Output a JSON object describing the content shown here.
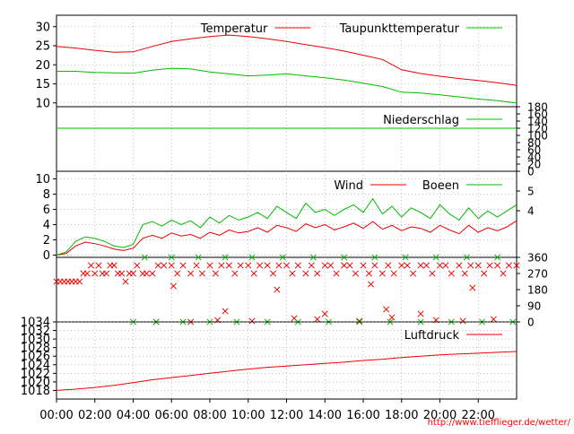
{
  "url_credit": "http://www.tiefflieger.de/wetter/",
  "colors": {
    "red": "#ee0000",
    "green": "#00bb00",
    "grid": "#9a9a9a"
  },
  "x_axis": {
    "ticks": [
      "00:00",
      "02:00",
      "04:00",
      "06:00",
      "08:00",
      "10:00",
      "12:00",
      "14:00",
      "16:00",
      "18:00",
      "20:00",
      "22:00"
    ]
  },
  "chart_data": [
    {
      "type": "line",
      "panel": "temperature",
      "x_unit": "hours",
      "xlim": [
        0,
        24
      ],
      "ylim": [
        9,
        33
      ],
      "y_ticks": [
        "10",
        "15",
        "20",
        "25",
        "30"
      ],
      "legend_position": "top-right",
      "series": [
        {
          "name": "Temperatur",
          "color": "#ee0000",
          "x": [
            0,
            1,
            2,
            3,
            4,
            5,
            6,
            7,
            8,
            9,
            10,
            11,
            12,
            13,
            14,
            15,
            16,
            17,
            18,
            19,
            20,
            21,
            22,
            23,
            24
          ],
          "values": [
            24.8,
            24.4,
            23.8,
            23.3,
            23.4,
            24.8,
            26.1,
            26.8,
            27.4,
            27.8,
            27.4,
            26.8,
            26.1,
            25.3,
            24.5,
            23.6,
            22.5,
            21.4,
            18.7,
            17.7,
            17.0,
            16.4,
            15.9,
            15.3,
            14.6
          ]
        },
        {
          "name": "Taupunkttemperatur",
          "color": "#00bb00",
          "x": [
            0,
            1,
            2,
            3,
            4,
            5,
            6,
            7,
            8,
            9,
            10,
            11,
            12,
            13,
            14,
            15,
            16,
            17,
            18,
            19,
            20,
            21,
            22,
            23,
            24
          ],
          "values": [
            18.3,
            18.3,
            18.0,
            17.9,
            17.8,
            18.6,
            19.1,
            18.9,
            18.1,
            17.6,
            17.1,
            17.3,
            17.6,
            17.1,
            16.6,
            16.0,
            15.2,
            14.3,
            12.8,
            12.6,
            12.1,
            11.6,
            11.0,
            10.6,
            10.0
          ]
        }
      ]
    },
    {
      "type": "line",
      "panel": "precipitation",
      "x_unit": "hours",
      "xlim": [
        0,
        24
      ],
      "ylim": [
        0,
        180
      ],
      "y_ticks_right": [
        "0",
        "20",
        "40",
        "60",
        "80",
        "100",
        "120",
        "140",
        "160",
        "180"
      ],
      "legend_position": "top-right",
      "series": [
        {
          "name": "Niederschlag",
          "color": "#00bb00",
          "x": [
            0,
            24
          ],
          "values": [
            120,
            120
          ]
        }
      ]
    },
    {
      "type": "line",
      "panel": "wind",
      "x_unit": "hours",
      "xlim": [
        0,
        24
      ],
      "ylim": [
        -0.3,
        11
      ],
      "y_ticks": [
        "0",
        "2",
        "4",
        "6",
        "8",
        "10"
      ],
      "y_ticks_right": [
        "4",
        "5"
      ],
      "legend_position": "top-right",
      "series": [
        {
          "name": "Wind",
          "color": "#ee0000",
          "x": [
            0,
            0.5,
            1,
            1.5,
            2,
            2.5,
            3,
            3.5,
            4,
            4.5,
            5,
            5.5,
            6,
            6.5,
            7,
            7.5,
            8,
            8.5,
            9,
            9.5,
            10,
            10.5,
            11,
            11.5,
            12,
            12.5,
            13,
            13.5,
            14,
            14.5,
            15,
            15.5,
            16,
            16.5,
            17,
            17.5,
            18,
            18.5,
            19,
            19.5,
            20,
            20.5,
            21,
            21.5,
            22,
            22.5,
            23,
            23.5,
            24
          ],
          "values": [
            0,
            0.2,
            1.2,
            1.7,
            1.5,
            1.2,
            0.8,
            0.6,
            0.9,
            2.2,
            2.6,
            2.2,
            2.9,
            2.5,
            2.7,
            2.2,
            3.0,
            2.6,
            3.3,
            2.9,
            3.1,
            3.6,
            3.0,
            3.9,
            3.6,
            3.1,
            4.1,
            3.6,
            4.0,
            3.3,
            3.7,
            4.2,
            3.5,
            4.4,
            3.4,
            3.9,
            3.2,
            3.7,
            3.5,
            3.0,
            3.9,
            3.3,
            2.8,
            3.9,
            3.0,
            3.6,
            3.2,
            3.7,
            4.5
          ]
        },
        {
          "name": "Boeen",
          "color": "#00bb00",
          "x": [
            0,
            0.5,
            1,
            1.5,
            2,
            2.5,
            3,
            3.5,
            4,
            4.5,
            5,
            5.5,
            6,
            6.5,
            7,
            7.5,
            8,
            8.5,
            9,
            9.5,
            10,
            10.5,
            11,
            11.5,
            12,
            12.5,
            13,
            13.5,
            14,
            14.5,
            15,
            15.5,
            16,
            16.5,
            17,
            17.5,
            18,
            18.5,
            19,
            19.5,
            20,
            20.5,
            21,
            21.5,
            22,
            22.5,
            23,
            23.5,
            24
          ],
          "values": [
            0,
            0.4,
            1.8,
            2.4,
            2.2,
            1.8,
            1.2,
            1.0,
            1.4,
            4.0,
            4.4,
            3.8,
            4.6,
            4.0,
            4.5,
            3.6,
            5.0,
            4.2,
            5.2,
            4.6,
            5.0,
            5.6,
            4.8,
            6.4,
            5.6,
            4.8,
            6.8,
            5.6,
            6.0,
            5.2,
            6.0,
            6.6,
            5.6,
            7.4,
            5.4,
            6.4,
            5.0,
            6.2,
            5.6,
            4.8,
            6.6,
            5.4,
            4.6,
            6.2,
            4.8,
            5.8,
            5.0,
            5.8,
            6.6
          ]
        }
      ]
    },
    {
      "type": "scatter",
      "panel": "wind_direction",
      "x_unit": "hours",
      "xlim": [
        0,
        24
      ],
      "ylim": [
        0,
        360
      ],
      "y_ticks_right": [
        "0",
        "90",
        "180",
        "270",
        "360"
      ],
      "series": [
        {
          "name": "",
          "color": "#ee0000",
          "marker": "x",
          "x": [
            0,
            0.2,
            0.4,
            0.6,
            0.8,
            1.0,
            1.2,
            1.4,
            1.6,
            1.8,
            2.0,
            2.2,
            2.4,
            2.6,
            2.8,
            3.0,
            3.2,
            3.4,
            3.6,
            3.8,
            4.0,
            4.2,
            4.5,
            4.7,
            5.0,
            5.3,
            5.6,
            6.0,
            6.3,
            6.6,
            7.0,
            7.3,
            7.6,
            8.0,
            8.3,
            8.6,
            9.0,
            9.3,
            9.6,
            10.0,
            10.3,
            10.6,
            11.0,
            11.3,
            11.6,
            12.0,
            12.3,
            12.6,
            13.0,
            13.3,
            13.6,
            14.0,
            14.3,
            14.6,
            15.0,
            15.3,
            15.6,
            16.0,
            16.3,
            16.6,
            17.0,
            17.3,
            17.6,
            18.0,
            18.3,
            18.6,
            19.0,
            19.3,
            19.6,
            20.0,
            20.3,
            20.6,
            21.0,
            21.3,
            21.6,
            22.0,
            22.3,
            22.6,
            23.0,
            23.3,
            23.6,
            24.0,
            5.2,
            7.0,
            8.4,
            10.2,
            12.4,
            13.6,
            15.8,
            17.5,
            19.8,
            21.2,
            22.8,
            8.8,
            14.0,
            17.2,
            19.0,
            6.1,
            11.5,
            16.4,
            21.7
          ],
          "values": [
            225,
            225,
            225,
            225,
            225,
            225,
            225,
            270,
            270,
            315,
            270,
            315,
            270,
            270,
            315,
            315,
            270,
            270,
            225,
            270,
            270,
            315,
            270,
            270,
            270,
            315,
            315,
            315,
            270,
            315,
            270,
            315,
            270,
            315,
            270,
            315,
            315,
            270,
            315,
            315,
            270,
            315,
            315,
            270,
            315,
            315,
            270,
            315,
            270,
            315,
            270,
            315,
            315,
            270,
            315,
            315,
            270,
            315,
            270,
            315,
            270,
            315,
            270,
            315,
            315,
            270,
            315,
            315,
            270,
            315,
            315,
            270,
            315,
            270,
            315,
            315,
            270,
            315,
            315,
            270,
            315,
            315,
            0,
            0,
            10,
            5,
            20,
            15,
            5,
            25,
            10,
            5,
            15,
            60,
            45,
            70,
            45,
            200,
            180,
            210,
            190
          ]
        },
        {
          "name": "",
          "color": "#00bb00",
          "marker": "x",
          "x": [
            4.0,
            4.6,
            5.2,
            6.0,
            6.6,
            7.4,
            8.0,
            8.8,
            9.4,
            10.2,
            11.0,
            11.8,
            12.6,
            13.4,
            14.2,
            15.0,
            15.8,
            16.6,
            17.4,
            18.2,
            19.0,
            19.8,
            20.6,
            21.4,
            22.2,
            23.0,
            23.8
          ],
          "values": [
            0,
            360,
            0,
            360,
            0,
            360,
            0,
            360,
            0,
            360,
            0,
            360,
            0,
            360,
            0,
            360,
            0,
            360,
            0,
            360,
            0,
            360,
            0,
            360,
            0,
            360,
            0
          ]
        }
      ]
    },
    {
      "type": "line",
      "panel": "pressure",
      "x_unit": "hours",
      "xlim": [
        0,
        24
      ],
      "ylim": [
        1016,
        1034
      ],
      "y_ticks": [
        "1018",
        "1020",
        "1022",
        "1024",
        "1026",
        "1028",
        "1030",
        "1032",
        "1034"
      ],
      "legend_position": "top-right",
      "series": [
        {
          "name": "Luftdruck",
          "color": "#ee0000",
          "x": [
            0,
            1,
            2,
            3,
            4,
            5,
            6,
            7,
            8,
            9,
            10,
            11,
            12,
            13,
            14,
            15,
            16,
            17,
            18,
            19,
            20,
            21,
            22,
            23,
            24
          ],
          "values": [
            1018.0,
            1018.3,
            1018.7,
            1019.2,
            1019.8,
            1020.5,
            1021.0,
            1021.5,
            1022.0,
            1022.5,
            1023.0,
            1023.4,
            1023.7,
            1024.0,
            1024.3,
            1024.6,
            1025.0,
            1025.3,
            1025.7,
            1026.0,
            1026.3,
            1026.5,
            1026.7,
            1026.9,
            1027.1
          ]
        }
      ]
    }
  ]
}
